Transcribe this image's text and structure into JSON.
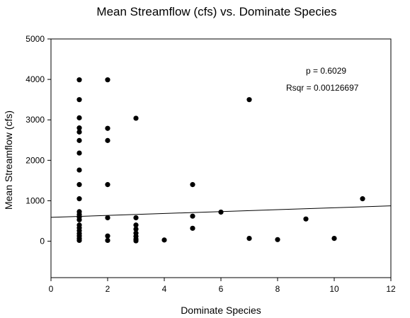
{
  "chart_data": {
    "type": "scatter",
    "title": "Mean Streamflow (cfs) vs. Dominate Species",
    "xlabel": "Dominate Species",
    "ylabel": "Mean Streamflow (cfs)",
    "xlim": [
      0,
      12
    ],
    "ylim": [
      -900,
      5000
    ],
    "x_ticks": [
      "0",
      "2",
      "4",
      "6",
      "8",
      "10",
      "12"
    ],
    "y_ticks": [
      "0",
      "1000",
      "2000",
      "3000",
      "4000",
      "5000"
    ],
    "grid": false,
    "annotations": [
      "p = 0.6029",
      "Rsqr = 0.00126697"
    ],
    "regression": {
      "x": [
        0,
        12
      ],
      "y": [
        590,
        875
      ]
    },
    "points": [
      {
        "x": 1,
        "y": 3990
      },
      {
        "x": 1,
        "y": 3500
      },
      {
        "x": 1,
        "y": 3050
      },
      {
        "x": 1,
        "y": 2800
      },
      {
        "x": 1,
        "y": 2700
      },
      {
        "x": 1,
        "y": 2490
      },
      {
        "x": 1,
        "y": 2180
      },
      {
        "x": 1,
        "y": 1760
      },
      {
        "x": 1,
        "y": 1400
      },
      {
        "x": 1,
        "y": 1050
      },
      {
        "x": 1,
        "y": 730
      },
      {
        "x": 1,
        "y": 660
      },
      {
        "x": 1,
        "y": 600
      },
      {
        "x": 1,
        "y": 530
      },
      {
        "x": 1,
        "y": 400
      },
      {
        "x": 1,
        "y": 330
      },
      {
        "x": 1,
        "y": 260
      },
      {
        "x": 1,
        "y": 190
      },
      {
        "x": 1,
        "y": 130
      },
      {
        "x": 1,
        "y": 70
      },
      {
        "x": 1,
        "y": 20
      },
      {
        "x": 2,
        "y": 3990
      },
      {
        "x": 2,
        "y": 2790
      },
      {
        "x": 2,
        "y": 2490
      },
      {
        "x": 2,
        "y": 1400
      },
      {
        "x": 2,
        "y": 580
      },
      {
        "x": 2,
        "y": 130
      },
      {
        "x": 2,
        "y": 20
      },
      {
        "x": 3,
        "y": 3040
      },
      {
        "x": 3,
        "y": 580
      },
      {
        "x": 3,
        "y": 400
      },
      {
        "x": 3,
        "y": 300
      },
      {
        "x": 3,
        "y": 200
      },
      {
        "x": 3,
        "y": 120
      },
      {
        "x": 3,
        "y": 50
      },
      {
        "x": 3,
        "y": 10
      },
      {
        "x": 4,
        "y": 30
      },
      {
        "x": 5,
        "y": 1400
      },
      {
        "x": 5,
        "y": 620
      },
      {
        "x": 5,
        "y": 320
      },
      {
        "x": 6,
        "y": 720
      },
      {
        "x": 7,
        "y": 3500
      },
      {
        "x": 7,
        "y": 70
      },
      {
        "x": 8,
        "y": 40
      },
      {
        "x": 9,
        "y": 550
      },
      {
        "x": 10,
        "y": 70
      },
      {
        "x": 11,
        "y": 1050
      }
    ]
  }
}
